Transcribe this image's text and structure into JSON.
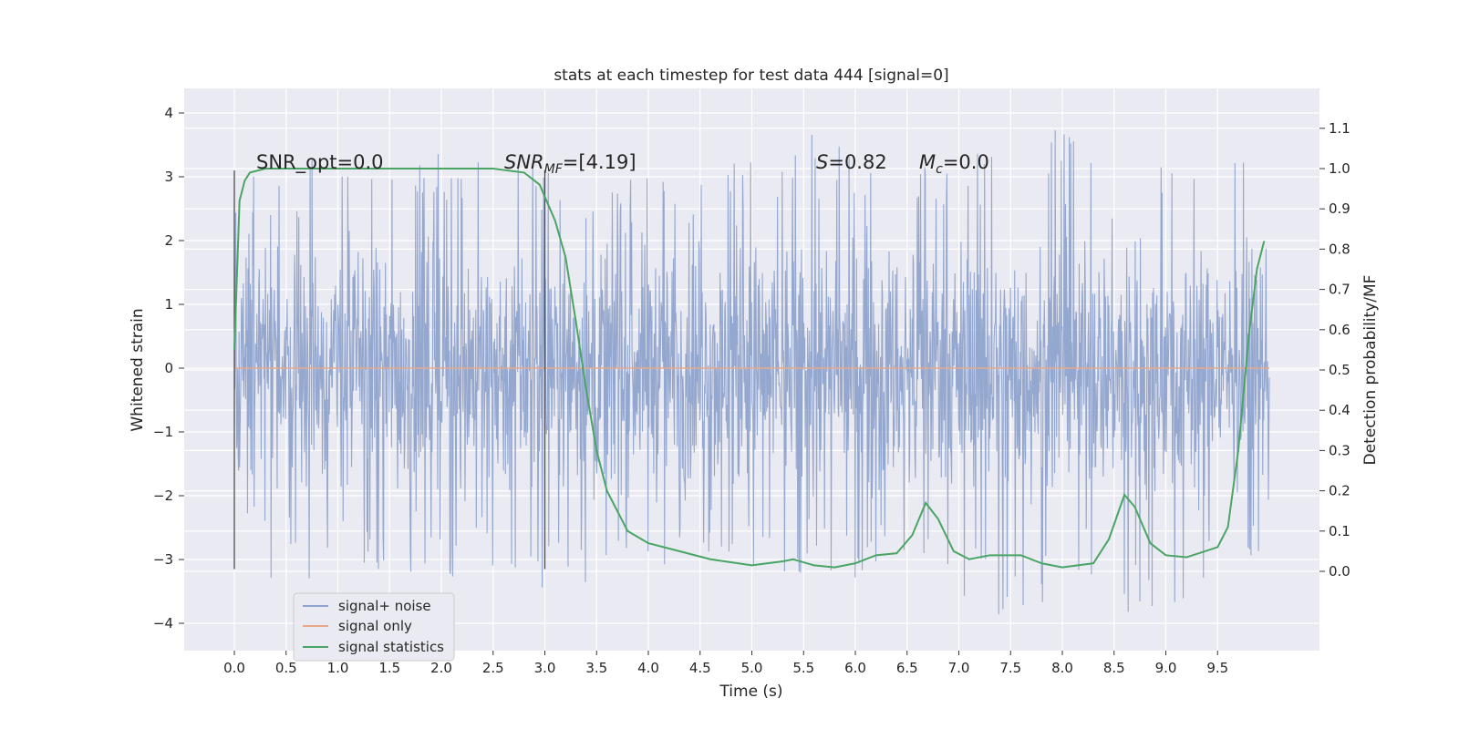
{
  "chart_data": {
    "type": "line",
    "title": "stats at each timestep for test data 444 [signal=0]",
    "xlabel": "Time (s)",
    "ylabel": "Whitened strain",
    "ylabel_right": "Detection probability/MF",
    "xlim": [
      -0.5,
      10.5
    ],
    "ylim": [
      -4.4,
      4.35
    ],
    "ylim_right": [
      -0.2,
      1.2
    ],
    "xticks": [
      0.0,
      0.5,
      1.0,
      1.5,
      2.0,
      2.5,
      3.0,
      3.5,
      4.0,
      4.5,
      5.0,
      5.5,
      6.0,
      6.5,
      7.0,
      7.5,
      8.0,
      8.5,
      9.0,
      9.5
    ],
    "xtick_labels": [
      "0.0",
      "0.5",
      "1.0",
      "1.5",
      "2.0",
      "2.5",
      "3.0",
      "3.5",
      "4.0",
      "4.5",
      "5.0",
      "5.5",
      "6.0",
      "6.5",
      "7.0",
      "7.5",
      "8.0",
      "8.5",
      "9.0",
      "9.5"
    ],
    "yticks": [
      -4,
      -3,
      -2,
      -1,
      0,
      1,
      2,
      3,
      4
    ],
    "ytick_labels": [
      "−4",
      "−3",
      "−2",
      "−1",
      "0",
      "1",
      "2",
      "3",
      "4"
    ],
    "yticks_right": [
      0.0,
      0.1,
      0.2,
      0.3,
      0.4,
      0.5,
      0.6,
      0.7,
      0.8,
      0.9,
      1.0,
      1.1
    ],
    "ytick_labels_right": [
      "0.0",
      "0.1",
      "0.2",
      "0.3",
      "0.4",
      "0.5",
      "0.6",
      "0.7",
      "0.8",
      "0.9",
      "1.0",
      "1.1"
    ],
    "grid": true,
    "legend_position": "lower-left",
    "annotations": {
      "snr_opt": "SNR_opt=0.0",
      "snr_mf_main": "SNR",
      "snr_mf_sub": "MF",
      "snr_mf_value": "=[4.19]",
      "s_main": "S",
      "s_value": "=0.82",
      "mc_main": "M",
      "mc_sub": "c",
      "mc_value": "=0.0"
    },
    "vertical_markers_x": [
      0.0,
      3.0
    ],
    "series": [
      {
        "name": "signal+ noise",
        "color": "#8fa3cc",
        "axis": "left",
        "x_range": [
          0.0,
          10.0
        ],
        "envelope": {
          "max_points": [
            [
              0,
              3.1
            ],
            [
              0.5,
              3.0
            ],
            [
              1.0,
              3.7
            ],
            [
              1.8,
              3.5
            ],
            [
              2.5,
              3.3
            ],
            [
              3.5,
              3.0
            ],
            [
              4.5,
              3.0
            ],
            [
              5.5,
              3.7
            ],
            [
              6.5,
              3.3
            ],
            [
              7.0,
              3.3
            ],
            [
              7.9,
              4.0
            ],
            [
              8.5,
              3.2
            ],
            [
              9.3,
              3.5
            ],
            [
              10.0,
              3.1
            ]
          ],
          "min_points": [
            [
              0,
              -3.1
            ],
            [
              0.3,
              -3.5
            ],
            [
              1.0,
              -3.4
            ],
            [
              1.6,
              -3.4
            ],
            [
              2.5,
              -3.2
            ],
            [
              3.4,
              -3.7
            ],
            [
              4.5,
              -3.1
            ],
            [
              5.2,
              -3.3
            ],
            [
              6.0,
              -3.3
            ],
            [
              6.5,
              -3.2
            ],
            [
              7.5,
              -4.0
            ],
            [
              8.0,
              -3.5
            ],
            [
              8.9,
              -4.0
            ],
            [
              9.5,
              -3.4
            ],
            [
              10.0,
              -3.0
            ]
          ],
          "typical_amplitude": 1.25,
          "samples": 2200
        }
      },
      {
        "name": "signal only",
        "color": "#e8a98a",
        "axis": "left",
        "x": [
          0.0,
          10.0
        ],
        "y": [
          0.0,
          0.0
        ]
      },
      {
        "name": "signal statistics",
        "color": "#4aa564",
        "axis": "right",
        "x": [
          0.0,
          0.05,
          0.1,
          0.15,
          0.3,
          0.6,
          1.0,
          1.5,
          2.0,
          2.5,
          2.8,
          2.95,
          3.1,
          3.2,
          3.3,
          3.4,
          3.5,
          3.6,
          3.8,
          4.0,
          4.3,
          4.6,
          5.0,
          5.3,
          5.4,
          5.6,
          5.8,
          6.0,
          6.2,
          6.4,
          6.55,
          6.68,
          6.8,
          6.95,
          7.1,
          7.3,
          7.6,
          7.8,
          8.0,
          8.3,
          8.45,
          8.6,
          8.7,
          8.85,
          9.0,
          9.2,
          9.5,
          9.6,
          9.7,
          9.8,
          9.88,
          9.95
        ],
        "y": [
          0.55,
          0.92,
          0.97,
          0.99,
          1.0,
          1.0,
          1.0,
          1.0,
          1.0,
          1.0,
          0.99,
          0.96,
          0.87,
          0.78,
          0.62,
          0.45,
          0.3,
          0.2,
          0.1,
          0.07,
          0.05,
          0.03,
          0.015,
          0.025,
          0.03,
          0.015,
          0.01,
          0.02,
          0.04,
          0.045,
          0.09,
          0.17,
          0.13,
          0.05,
          0.03,
          0.04,
          0.04,
          0.02,
          0.01,
          0.02,
          0.08,
          0.19,
          0.16,
          0.07,
          0.04,
          0.035,
          0.06,
          0.11,
          0.3,
          0.58,
          0.75,
          0.82
        ]
      }
    ]
  }
}
